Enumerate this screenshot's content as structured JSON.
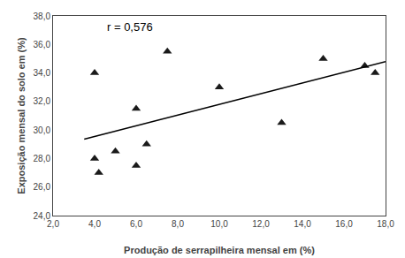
{
  "chart_data": {
    "type": "scatter",
    "xlabel": "Produção de serrapilheira mensal em (%)",
    "ylabel": "Exposição mensal do solo em (%)",
    "annotation": "r = 0,576",
    "grid": false,
    "series": [
      {
        "type": "scatter",
        "marker": "triangle",
        "color": "#1a1a1a",
        "x": [
          4.0,
          4.0,
          4.2,
          5.0,
          6.0,
          6.0,
          6.5,
          7.5,
          10.0,
          13.0,
          15.0,
          17.0,
          17.5
        ],
        "values": [
          34.0,
          28.0,
          27.0,
          28.5,
          31.5,
          27.5,
          29.0,
          35.5,
          33.0,
          30.5,
          35.0,
          34.5,
          34.0
        ]
      },
      {
        "type": "line",
        "line_style": "solid",
        "color": "#000000",
        "x": [
          3.5,
          18.0
        ],
        "values": [
          29.356,
          34.803
        ]
      }
    ],
    "xlim": [
      2.0,
      18.0
    ],
    "ylim": [
      24.0,
      38.0
    ],
    "xticks": [
      {
        "value": 2.0,
        "label": "2,0"
      },
      {
        "value": 4.0,
        "label": "4,0"
      },
      {
        "value": 6.0,
        "label": "6,0"
      },
      {
        "value": 8.0,
        "label": "8,0"
      },
      {
        "value": 10.0,
        "label": "10,0"
      },
      {
        "value": 12.0,
        "label": "12,0"
      },
      {
        "value": 14.0,
        "label": "14,0"
      },
      {
        "value": 16.0,
        "label": "16,0"
      },
      {
        "value": 18.0,
        "label": "18,0"
      }
    ],
    "yticks": [
      {
        "value": 24.0,
        "label": "24,0"
      },
      {
        "value": 26.0,
        "label": "26,0"
      },
      {
        "value": 28.0,
        "label": "28,0"
      },
      {
        "value": 30.0,
        "label": "30,0"
      },
      {
        "value": 32.0,
        "label": "32,0"
      },
      {
        "value": 34.0,
        "label": "34,0"
      },
      {
        "value": 36.0,
        "label": "36,0"
      },
      {
        "value": 38.0,
        "label": "38,0"
      }
    ]
  }
}
